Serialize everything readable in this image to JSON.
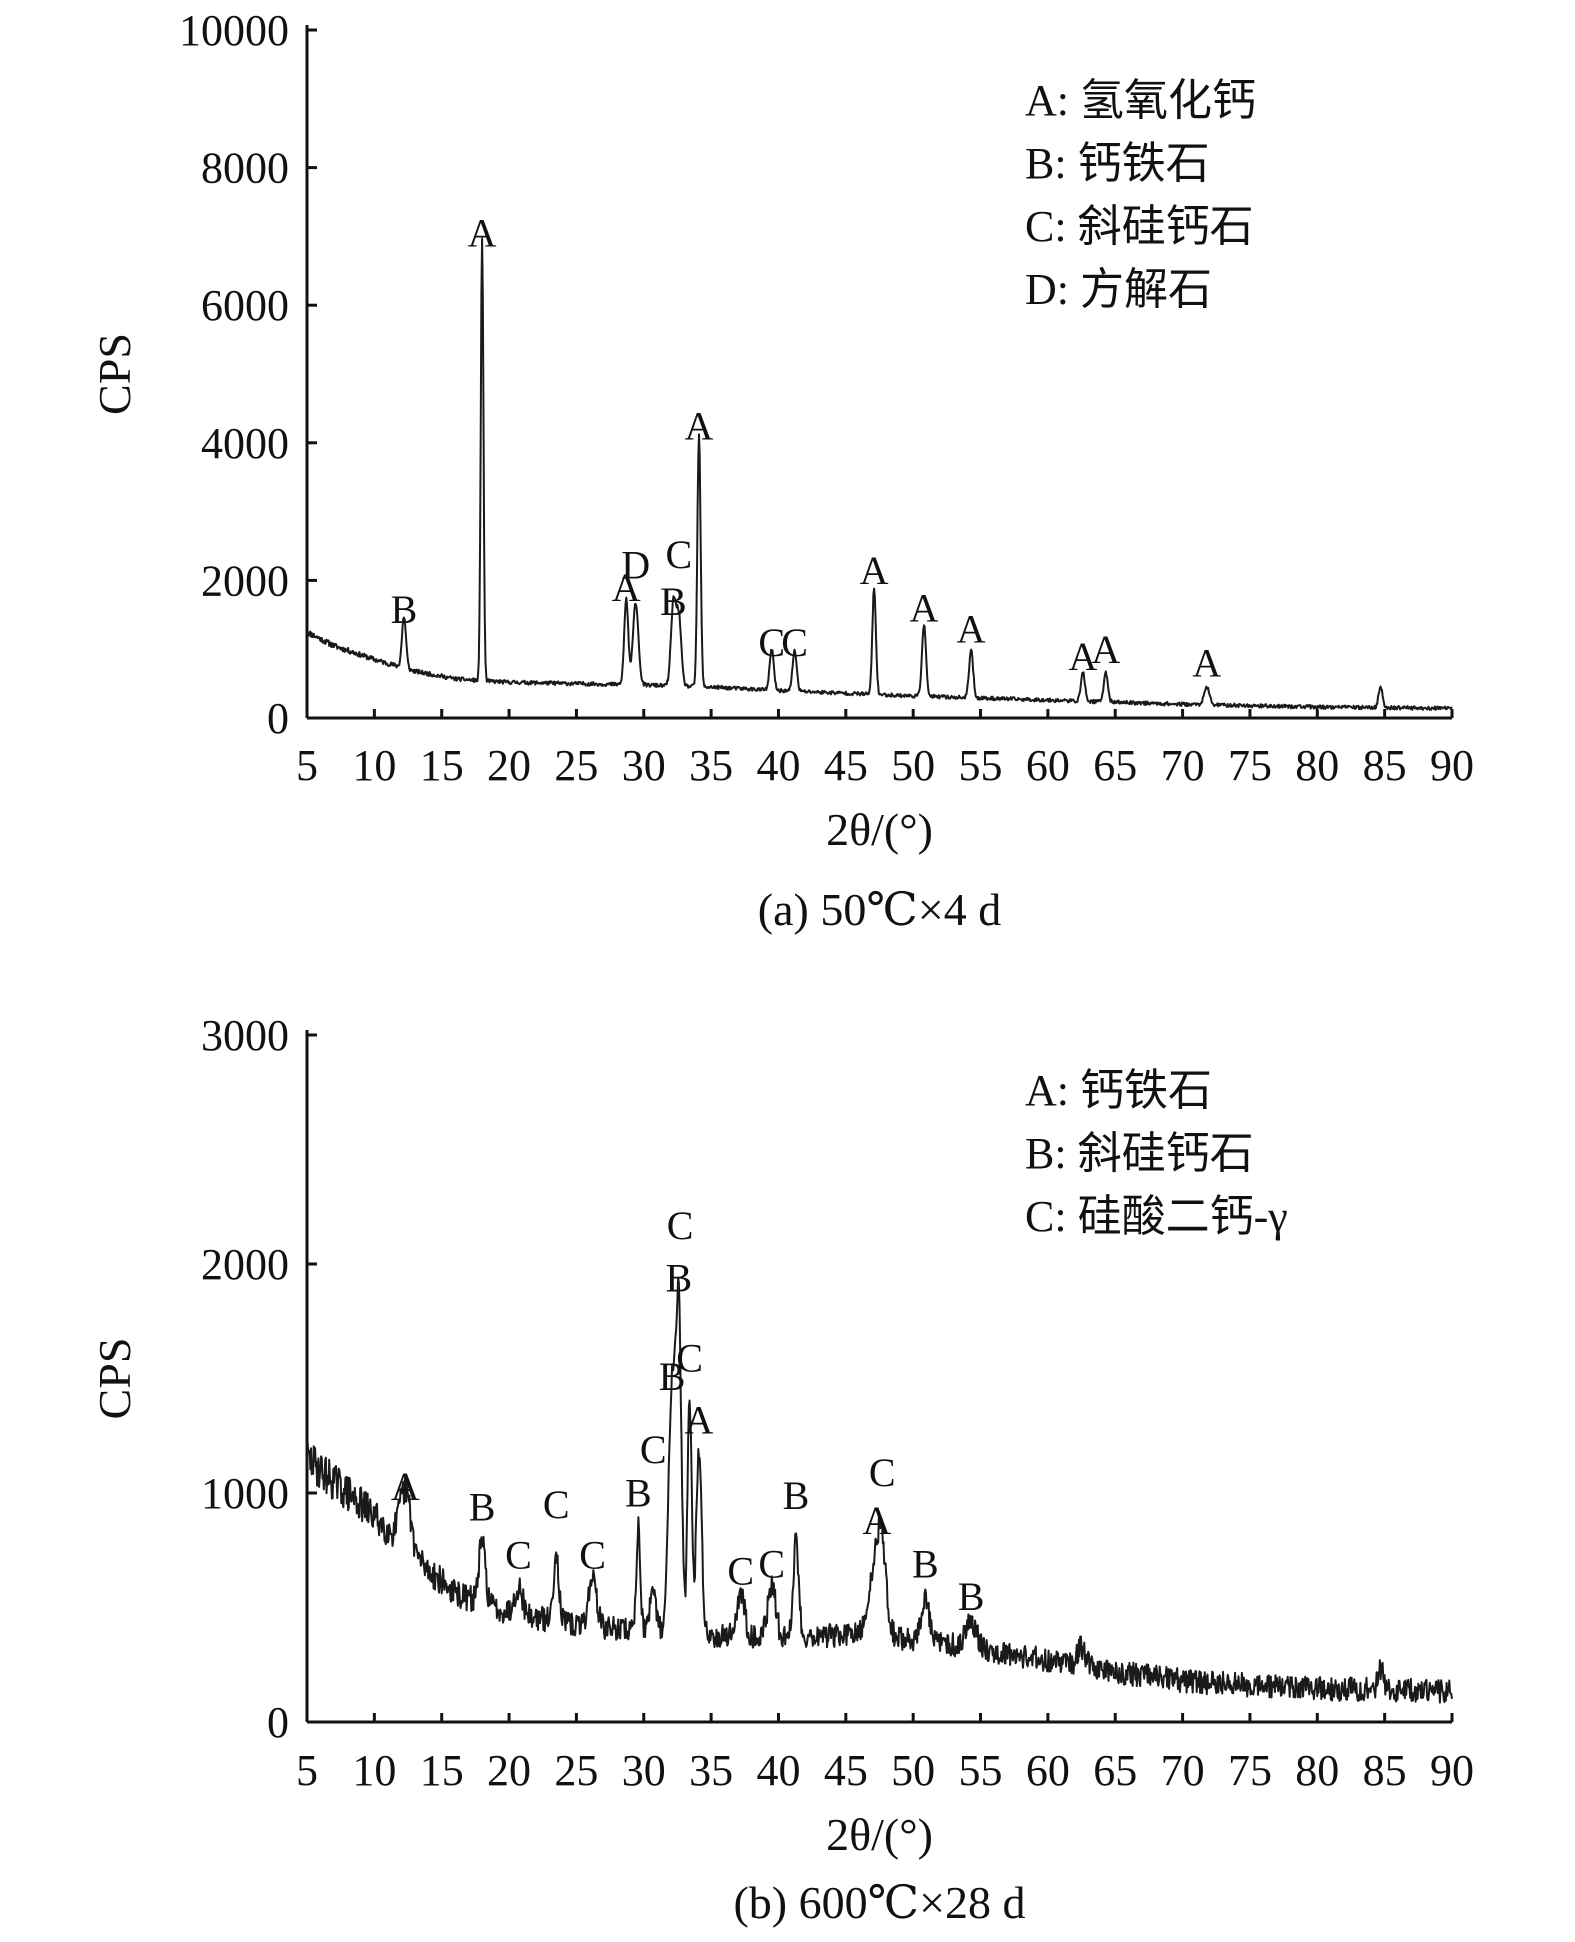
{
  "chart_data": [
    {
      "type": "line",
      "caption": "(a) 50℃×4 d",
      "xlabel": "2θ/(°)",
      "ylabel": "CPS",
      "xlim": [
        5,
        90
      ],
      "ylim": [
        0,
        10000
      ],
      "x_ticks": [
        5,
        10,
        15,
        20,
        25,
        30,
        35,
        40,
        45,
        50,
        55,
        60,
        65,
        70,
        75,
        80,
        85,
        90
      ],
      "y_ticks": [
        0,
        2000,
        4000,
        6000,
        8000,
        10000
      ],
      "legend": [
        "A: 氢氧化钙",
        "B: 钙铁石",
        "C: 斜硅钙石",
        "D: 方解石"
      ],
      "legend_position": "top-right",
      "background": [
        [
          5,
          1250
        ],
        [
          7,
          1050
        ],
        [
          10,
          850
        ],
        [
          13,
          680
        ],
        [
          16,
          570
        ],
        [
          18,
          540
        ],
        [
          20,
          520
        ],
        [
          25,
          500
        ],
        [
          30,
          480
        ],
        [
          35,
          450
        ],
        [
          40,
          400
        ],
        [
          45,
          360
        ],
        [
          50,
          320
        ],
        [
          55,
          290
        ],
        [
          60,
          260
        ],
        [
          65,
          230
        ],
        [
          70,
          200
        ],
        [
          75,
          180
        ],
        [
          80,
          160
        ],
        [
          85,
          150
        ],
        [
          90,
          140
        ]
      ],
      "peaks": [
        {
          "x": 12.2,
          "y": 750,
          "w": 0.15,
          "label": "B",
          "label_y": 1380
        },
        {
          "x": 18.0,
          "y": 6400,
          "w": 0.1,
          "label": "A",
          "label_y": 6850
        },
        {
          "x": 28.7,
          "y": 1250,
          "w": 0.15,
          "label": "A",
          "label_y": 1700
        },
        {
          "x": 29.4,
          "y": 1200,
          "w": 0.2,
          "label": "D",
          "label_y": 2030
        },
        {
          "x": 32.2,
          "y": 1200,
          "w": 0.18,
          "label": "B",
          "label_y": 1500
        },
        {
          "x": 32.6,
          "y": 1000,
          "w": 0.18,
          "label": "C",
          "label_y": 2180
        },
        {
          "x": 34.1,
          "y": 3650,
          "w": 0.12,
          "label": "A",
          "label_y": 4050
        },
        {
          "x": 39.5,
          "y": 600,
          "w": 0.15,
          "label": "C",
          "label_y": 900
        },
        {
          "x": 41.2,
          "y": 600,
          "w": 0.15,
          "label": "C",
          "label_y": 900
        },
        {
          "x": 47.1,
          "y": 1550,
          "w": 0.13,
          "label": "A",
          "label_y": 1950
        },
        {
          "x": 50.8,
          "y": 1050,
          "w": 0.15,
          "label": "A",
          "label_y": 1400
        },
        {
          "x": 54.3,
          "y": 700,
          "w": 0.15,
          "label": "A",
          "label_y": 1100
        },
        {
          "x": 62.6,
          "y": 420,
          "w": 0.15,
          "label": "A",
          "label_y": 700
        },
        {
          "x": 64.3,
          "y": 430,
          "w": 0.15,
          "label": "A",
          "label_y": 800
        },
        {
          "x": 71.8,
          "y": 250,
          "w": 0.2,
          "label": "A",
          "label_y": 600
        },
        {
          "x": 84.7,
          "y": 300,
          "w": 0.15,
          "label": "",
          "label_y": 0
        }
      ]
    },
    {
      "type": "line",
      "caption": "(b) 600℃×28 d",
      "xlabel": "2θ/(°)",
      "ylabel": "CPS",
      "xlim": [
        5,
        90
      ],
      "ylim": [
        0,
        3000
      ],
      "x_ticks": [
        5,
        10,
        15,
        20,
        25,
        30,
        35,
        40,
        45,
        50,
        55,
        60,
        65,
        70,
        75,
        80,
        85,
        90
      ],
      "y_ticks": [
        0,
        1000,
        2000,
        3000
      ],
      "legend": [
        "A: 钙铁石",
        "B: 斜硅钙石",
        "C: 硅酸二钙-γ"
      ],
      "legend_position": "top-right",
      "background": [
        [
          5,
          1150
        ],
        [
          8,
          1000
        ],
        [
          10,
          900
        ],
        [
          13,
          720
        ],
        [
          16,
          560
        ],
        [
          18,
          520
        ],
        [
          20,
          480
        ],
        [
          25,
          420
        ],
        [
          30,
          400
        ],
        [
          35,
          380
        ],
        [
          40,
          370
        ],
        [
          45,
          380
        ],
        [
          50,
          360
        ],
        [
          55,
          320
        ],
        [
          60,
          270
        ],
        [
          65,
          220
        ],
        [
          70,
          180
        ],
        [
          75,
          160
        ],
        [
          80,
          145
        ],
        [
          85,
          140
        ],
        [
          90,
          130
        ]
      ],
      "peaks": [
        {
          "x": 12.3,
          "y": 250,
          "w": 0.4,
          "label": "A",
          "label_y": 970
        },
        {
          "x": 18.0,
          "y": 260,
          "w": 0.25,
          "label": "B",
          "label_y": 880
        },
        {
          "x": 20.7,
          "y": 120,
          "w": 0.3,
          "label": "C",
          "label_y": 670
        },
        {
          "x": 23.5,
          "y": 300,
          "w": 0.2,
          "label": "C",
          "label_y": 890
        },
        {
          "x": 26.2,
          "y": 220,
          "w": 0.3,
          "label": "C",
          "label_y": 670
        },
        {
          "x": 29.6,
          "y": 450,
          "w": 0.15,
          "label": "B",
          "label_y": 940
        },
        {
          "x": 30.7,
          "y": 150,
          "w": 0.25,
          "label": "C",
          "label_y": 1130
        },
        {
          "x": 32.1,
          "y": 1100,
          "w": 0.25,
          "label": "B",
          "label_y": 1450
        },
        {
          "x": 32.6,
          "y": 1350,
          "w": 0.2,
          "label": "B",
          "label_y": 1880
        },
        {
          "x": 32.7,
          "y": 0,
          "w": 0.2,
          "label": "C",
          "label_y": 2110
        },
        {
          "x": 33.4,
          "y": 1050,
          "w": 0.15,
          "label": "C",
          "label_y": 1530
        },
        {
          "x": 34.1,
          "y": 800,
          "w": 0.2,
          "label": "A",
          "label_y": 1260
        },
        {
          "x": 37.2,
          "y": 180,
          "w": 0.3,
          "label": "C",
          "label_y": 600
        },
        {
          "x": 39.5,
          "y": 220,
          "w": 0.3,
          "label": "C",
          "label_y": 630
        },
        {
          "x": 41.3,
          "y": 420,
          "w": 0.2,
          "label": "B",
          "label_y": 930
        },
        {
          "x": 47.3,
          "y": 350,
          "w": 0.5,
          "label": "A",
          "label_y": 820
        },
        {
          "x": 47.7,
          "y": 200,
          "w": 0.3,
          "label": "C",
          "label_y": 1030
        },
        {
          "x": 50.9,
          "y": 180,
          "w": 0.3,
          "label": "B",
          "label_y": 630
        },
        {
          "x": 54.3,
          "y": 120,
          "w": 0.4,
          "label": "B",
          "label_y": 490
        },
        {
          "x": 62.5,
          "y": 80,
          "w": 0.3,
          "label": "",
          "label_y": 0
        },
        {
          "x": 84.7,
          "y": 90,
          "w": 0.2,
          "label": "",
          "label_y": 0
        }
      ]
    }
  ]
}
